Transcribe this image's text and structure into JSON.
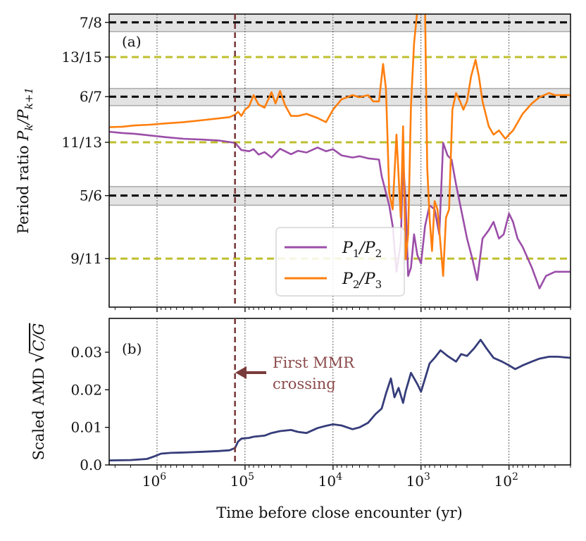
{
  "chart_data": [
    {
      "panel": "a",
      "type": "line",
      "panel_label": "(a)",
      "ylabel": "Period ratio P_k/P_{k+1}",
      "ylabel_plain": "Period ratio ",
      "ylabel_math": "P",
      "ylabel_sub1": "k",
      "ylabel_math2": "/P",
      "ylabel_sub2": "k+1",
      "xscale": "log (reversed)",
      "xlim": [
        3500000.0,
        20
      ],
      "ylim": [
        0.8065,
        0.877
      ],
      "yticks": [
        {
          "value": 0.875,
          "label": "7/8"
        },
        {
          "value": 0.86667,
          "label": "13/15"
        },
        {
          "value": 0.85714,
          "label": "6/7"
        },
        {
          "value": 0.84615,
          "label": "11/13"
        },
        {
          "value": 0.83333,
          "label": "5/6"
        },
        {
          "value": 0.81818,
          "label": "9/11"
        }
      ],
      "resonance_lines": [
        {
          "value": 0.875,
          "order": "first",
          "color": "#000000"
        },
        {
          "value": 0.86667,
          "order": "second",
          "color": "#bfbf2f"
        },
        {
          "value": 0.85714,
          "order": "first",
          "color": "#000000"
        },
        {
          "value": 0.84615,
          "order": "second",
          "color": "#bfbf2f"
        },
        {
          "value": 0.83333,
          "order": "first",
          "color": "#000000"
        },
        {
          "value": 0.81818,
          "order": "second",
          "color": "#bfbf2f"
        }
      ],
      "resonance_bands": [
        {
          "ymin": 0.8728,
          "ymax": 0.8772
        },
        {
          "ymin": 0.855,
          "ymax": 0.8591
        },
        {
          "ymin": 0.831,
          "ymax": 0.8355
        }
      ],
      "series": [
        {
          "name": "P1/P2",
          "legend_main": "P",
          "legend_sub1": "1",
          "legend_mid": "/P",
          "legend_sub2": "2",
          "color": "#9b4ea8",
          "points": [
            [
              3500000.0,
              0.8487
            ],
            [
              2500000.0,
              0.8484
            ],
            [
              1800000.0,
              0.8482
            ],
            [
              1200000.0,
              0.8478
            ],
            [
              800000.0,
              0.8474
            ],
            [
              500000.0,
              0.847
            ],
            [
              300000.0,
              0.8468
            ],
            [
              200000.0,
              0.8466
            ],
            [
              150000.0,
              0.8462
            ],
            [
              130000.0,
              0.846
            ],
            [
              120000.0,
              0.8452
            ],
            [
              110000.0,
              0.8443
            ],
            [
              90000.0,
              0.844
            ],
            [
              80000.0,
              0.8445
            ],
            [
              70000.0,
              0.8432
            ],
            [
              60000.0,
              0.8438
            ],
            [
              50000.0,
              0.8425
            ],
            [
              40000.0,
              0.8446
            ],
            [
              30000.0,
              0.8433
            ],
            [
              25000.0,
              0.8441
            ],
            [
              20000.0,
              0.8437
            ],
            [
              15000.0,
              0.8449
            ],
            [
              12000.0,
              0.844
            ],
            [
              10000.0,
              0.8445
            ],
            [
              8000.0,
              0.843
            ],
            [
              6000.0,
              0.8425
            ],
            [
              5000.0,
              0.8428
            ],
            [
              4000.0,
              0.8423
            ],
            [
              3000.0,
              0.842
            ],
            [
              2800.0,
              0.838
            ],
            [
              2500.0,
              0.834
            ],
            [
              2300.0,
              0.831
            ],
            [
              2100.0,
              0.826
            ],
            [
              1900.0,
              0.815
            ],
            [
              1700.0,
              0.822
            ],
            [
              1600.0,
              0.842
            ],
            [
              1500.0,
              0.832
            ],
            [
              1400.0,
              0.814
            ],
            [
              1300.0,
              0.816
            ],
            [
              1200.0,
              0.824
            ],
            [
              1100.0,
              0.819
            ],
            [
              1000.0,
              0.817
            ],
            [
              900,
              0.826
            ],
            [
              800,
              0.831
            ],
            [
              700,
              0.83
            ],
            [
              620,
              0.824
            ],
            [
              560,
              0.846
            ],
            [
              500,
              0.843
            ],
            [
              450,
              0.842
            ],
            [
              400,
              0.836
            ],
            [
              350,
              0.83
            ],
            [
              300,
              0.823
            ],
            [
              260,
              0.818
            ],
            [
              230,
              0.813
            ],
            [
              200,
              0.823
            ],
            [
              170,
              0.825
            ],
            [
              150,
              0.827
            ],
            [
              130,
              0.823
            ],
            [
              115,
              0.824
            ],
            [
              100,
              0.829
            ],
            [
              90,
              0.827
            ],
            [
              80,
              0.823
            ],
            [
              70,
              0.821
            ],
            [
              55,
              0.816
            ],
            [
              45,
              0.811
            ],
            [
              38,
              0.814
            ],
            [
              30,
              0.815
            ],
            [
              20,
              0.815
            ]
          ]
        },
        {
          "name": "P2/P3",
          "legend_main": "P",
          "legend_sub1": "2",
          "legend_mid": "/P",
          "legend_sub2": "3",
          "color": "#ff7f0e",
          "points": [
            [
              3500000.0,
              0.8498
            ],
            [
              2500000.0,
              0.8499
            ],
            [
              1800000.0,
              0.8502
            ],
            [
              1200000.0,
              0.8504
            ],
            [
              800000.0,
              0.8507
            ],
            [
              500000.0,
              0.851
            ],
            [
              300000.0,
              0.8515
            ],
            [
              200000.0,
              0.8519
            ],
            [
              150000.0,
              0.8522
            ],
            [
              130000.0,
              0.8528
            ],
            [
              120000.0,
              0.8535
            ],
            [
              110000.0,
              0.8525
            ],
            [
              100000.0,
              0.854
            ],
            [
              90000.0,
              0.8548
            ],
            [
              80000.0,
              0.8575
            ],
            [
              70000.0,
              0.8552
            ],
            [
              60000.0,
              0.8545
            ],
            [
              50000.0,
              0.8582
            ],
            [
              45000.0,
              0.8555
            ],
            [
              40000.0,
              0.8585
            ],
            [
              35000.0,
              0.855
            ],
            [
              30000.0,
              0.8525
            ],
            [
              25000.0,
              0.8525
            ],
            [
              20000.0,
              0.853
            ],
            [
              15000.0,
              0.852
            ],
            [
              12000.0,
              0.851
            ],
            [
              10000.0,
              0.854
            ],
            [
              8000.0,
              0.8565
            ],
            [
              6000.0,
              0.8575
            ],
            [
              5000.0,
              0.857
            ],
            [
              4000.0,
              0.8575
            ],
            [
              3500.0,
              0.856
            ],
            [
              3000.0,
              0.856
            ],
            [
              2700.0,
              0.865
            ],
            [
              2500.0,
              0.859
            ],
            [
              2300.0,
              0.834
            ],
            [
              2100.0,
              0.83
            ],
            [
              1900.0,
              0.848
            ],
            [
              1700.0,
              0.828
            ],
            [
              1600.0,
              0.85
            ],
            [
              1500.0,
              0.818
            ],
            [
              1400.0,
              0.824
            ],
            [
              1300.0,
              0.855
            ],
            [
              1200.0,
              0.87
            ],
            [
              1100.0,
              0.878
            ],
            [
              1000.0,
              0.878
            ],
            [
              900,
              0.878
            ],
            [
              850,
              0.84
            ],
            [
              800,
              0.828
            ],
            [
              750,
              0.82
            ],
            [
              700,
              0.832
            ],
            [
              650,
              0.83
            ],
            [
              620,
              0.825
            ],
            [
              560,
              0.814
            ],
            [
              520,
              0.828
            ],
            [
              480,
              0.83
            ],
            [
              440,
              0.854
            ],
            [
              400,
              0.858
            ],
            [
              360,
              0.856
            ],
            [
              330,
              0.854
            ],
            [
              300,
              0.856
            ],
            [
              270,
              0.862
            ],
            [
              240,
              0.866
            ],
            [
              220,
              0.862
            ],
            [
              200,
              0.856
            ],
            [
              170,
              0.85
            ],
            [
              150,
              0.848
            ],
            [
              130,
              0.849
            ],
            [
              110,
              0.847
            ],
            [
              100,
              0.848
            ],
            [
              90,
              0.849
            ],
            [
              70,
              0.853
            ],
            [
              55,
              0.8555
            ],
            [
              45,
              0.857
            ],
            [
              35,
              0.858
            ],
            [
              30,
              0.8575
            ],
            [
              20,
              0.8575
            ]
          ]
        }
      ]
    },
    {
      "panel": "b",
      "type": "line",
      "panel_label": "(b)",
      "ylabel": "Scaled AMD √(C/G)",
      "ylabel_plain": "Scaled AMD ",
      "ylabel_sqrt": "√",
      "ylabel_frac": "C/G",
      "xlabel": "Time before close encounter (yr)",
      "xscale": "log (reversed)",
      "xlim": [
        3500000.0,
        20
      ],
      "ylim": [
        0.0,
        0.039
      ],
      "yticks": [
        {
          "value": 0.0,
          "label": "0.0"
        },
        {
          "value": 0.01,
          "label": "0.01"
        },
        {
          "value": 0.02,
          "label": "0.02"
        },
        {
          "value": 0.03,
          "label": "0.03"
        }
      ],
      "xticks": [
        {
          "value": 1000000.0,
          "base": "10",
          "exp": "6"
        },
        {
          "value": 100000.0,
          "base": "10",
          "exp": "5"
        },
        {
          "value": 10000.0,
          "base": "10",
          "exp": "4"
        },
        {
          "value": 1000.0,
          "base": "10",
          "exp": "3"
        },
        {
          "value": 100.0,
          "base": "10",
          "exp": "2"
        }
      ],
      "series": [
        {
          "name": "Scaled AMD",
          "color": "#363d7a",
          "points": [
            [
              3500000.0,
              0.0012
            ],
            [
              2000000.0,
              0.0013
            ],
            [
              1300000.0,
              0.0016
            ],
            [
              1100000.0,
              0.0022
            ],
            [
              900000.0,
              0.003
            ],
            [
              700000.0,
              0.0032
            ],
            [
              500000.0,
              0.0033
            ],
            [
              300000.0,
              0.0035
            ],
            [
              200000.0,
              0.0037
            ],
            [
              150000.0,
              0.0039
            ],
            [
              130000.0,
              0.0045
            ],
            [
              120000.0,
              0.0062
            ],
            [
              110000.0,
              0.007
            ],
            [
              90000.0,
              0.0072
            ],
            [
              80000.0,
              0.0075
            ],
            [
              60000.0,
              0.0078
            ],
            [
              50000.0,
              0.0085
            ],
            [
              40000.0,
              0.009
            ],
            [
              30000.0,
              0.0093
            ],
            [
              25000.0,
              0.0088
            ],
            [
              20000.0,
              0.0085
            ],
            [
              15000.0,
              0.0098
            ],
            [
              12000.0,
              0.0104
            ],
            [
              10000.0,
              0.0108
            ],
            [
              8000.0,
              0.0105
            ],
            [
              6000.0,
              0.0095
            ],
            [
              5000.0,
              0.01
            ],
            [
              4000.0,
              0.0112
            ],
            [
              3300.0,
              0.0135
            ],
            [
              2800.0,
              0.015
            ],
            [
              2500.0,
              0.019
            ],
            [
              2200.0,
              0.023
            ],
            [
              2000.0,
              0.018
            ],
            [
              1800.0,
              0.0205
            ],
            [
              1600.0,
              0.0165
            ],
            [
              1500.0,
              0.0195
            ],
            [
              1300.0,
              0.0245
            ],
            [
              1100.0,
              0.0215
            ],
            [
              1000.0,
              0.0195
            ],
            [
              900,
              0.023
            ],
            [
              800,
              0.027
            ],
            [
              700,
              0.0285
            ],
            [
              600,
              0.0305
            ],
            [
              500,
              0.029
            ],
            [
              400,
              0.0275
            ],
            [
              350,
              0.0295
            ],
            [
              300,
              0.029
            ],
            [
              250,
              0.031
            ],
            [
              210,
              0.0333
            ],
            [
              180,
              0.031
            ],
            [
              150,
              0.0285
            ],
            [
              120,
              0.0275
            ],
            [
              100,
              0.0265
            ],
            [
              85,
              0.0255
            ],
            [
              70,
              0.0265
            ],
            [
              55,
              0.0275
            ],
            [
              45,
              0.0283
            ],
            [
              35,
              0.0288
            ],
            [
              28,
              0.0288
            ],
            [
              20,
              0.0285
            ]
          ]
        }
      ]
    }
  ],
  "mmr_crossing": {
    "time": 130000.0,
    "color": "#7a3b3b",
    "annotation_line1": "First MMR",
    "annotation_line2": "crossing"
  }
}
